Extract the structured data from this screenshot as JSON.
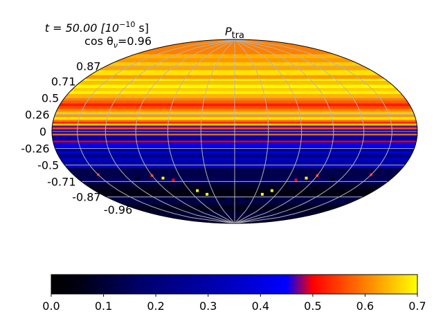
{
  "chart_data": {
    "type": "heatmap",
    "projection": "hammer (all-sky)",
    "title_main": "P",
    "title_sub": "tra",
    "annotation_time": {
      "prefix": "t = 50.00 [10",
      "exp": "−10",
      "suffix": " s]"
    },
    "annotation_angle": {
      "prefix": "cos θ",
      "sub": "ν",
      "suffix": "=0.96"
    },
    "ytick_labels": [
      "0.87",
      "0.71",
      "0.5",
      "0.26",
      "0",
      "-0.26",
      "-0.5",
      "-0.71",
      "-0.87",
      "-0.96"
    ],
    "ytick_values": [
      0.87,
      0.71,
      0.5,
      0.26,
      0,
      -0.26,
      -0.5,
      -0.71,
      -0.87,
      -0.96
    ],
    "colorbar": {
      "range": [
        0.0,
        0.7
      ],
      "tick_values": [
        0.0,
        0.1,
        0.2,
        0.3,
        0.4,
        0.5,
        0.6,
        0.7
      ],
      "tick_labels": [
        "0.0",
        "0.1",
        "0.2",
        "0.3",
        "0.4",
        "0.5",
        "0.6",
        "0.7"
      ],
      "stops": [
        {
          "v": 0.0,
          "color": "#000000"
        },
        {
          "v": 0.05,
          "color": "#000010"
        },
        {
          "v": 0.18,
          "color": "#000070"
        },
        {
          "v": 0.3,
          "color": "#0000a8"
        },
        {
          "v": 0.4,
          "color": "#0000e0"
        },
        {
          "v": 0.45,
          "color": "#0000ff"
        },
        {
          "v": 0.5,
          "color": "#ff0000"
        },
        {
          "v": 0.6,
          "color": "#ff8000"
        },
        {
          "v": 0.7,
          "color": "#ffff00"
        }
      ]
    },
    "bands": [
      {
        "sin_lat_top": 1.0,
        "value": 0.6
      },
      {
        "sin_lat_top": 0.955,
        "value": 0.64
      },
      {
        "sin_lat_top": 0.93,
        "value": 0.62
      },
      {
        "sin_lat_top": 0.9,
        "value": 0.66
      },
      {
        "sin_lat_top": 0.87,
        "value": 0.63
      },
      {
        "sin_lat_top": 0.83,
        "value": 0.68
      },
      {
        "sin_lat_top": 0.78,
        "value": 0.62
      },
      {
        "sin_lat_top": 0.74,
        "value": 0.69
      },
      {
        "sin_lat_top": 0.71,
        "value": 0.65
      },
      {
        "sin_lat_top": 0.67,
        "value": 0.7
      },
      {
        "sin_lat_top": 0.63,
        "value": 0.66
      },
      {
        "sin_lat_top": 0.59,
        "value": 0.69
      },
      {
        "sin_lat_top": 0.55,
        "value": 0.64
      },
      {
        "sin_lat_top": 0.5,
        "value": 0.6
      },
      {
        "sin_lat_top": 0.46,
        "value": 0.57
      },
      {
        "sin_lat_top": 0.42,
        "value": 0.52
      },
      {
        "sin_lat_top": 0.38,
        "value": 0.56
      },
      {
        "sin_lat_top": 0.34,
        "value": 0.61
      },
      {
        "sin_lat_top": 0.3,
        "value": 0.66
      },
      {
        "sin_lat_top": 0.26,
        "value": 0.62
      },
      {
        "sin_lat_top": 0.22,
        "value": 0.68
      },
      {
        "sin_lat_top": 0.18,
        "value": 0.6
      },
      {
        "sin_lat_top": 0.15,
        "value": 0.53
      },
      {
        "sin_lat_top": 0.12,
        "value": 0.66
      },
      {
        "sin_lat_top": 0.09,
        "value": 0.47
      },
      {
        "sin_lat_top": 0.06,
        "value": 0.56
      },
      {
        "sin_lat_top": 0.03,
        "value": 0.31
      },
      {
        "sin_lat_top": 0.0,
        "value": 0.2
      },
      {
        "sin_lat_top": -0.02,
        "value": 0.47
      },
      {
        "sin_lat_top": -0.04,
        "value": 0.6
      },
      {
        "sin_lat_top": -0.06,
        "value": 0.34
      },
      {
        "sin_lat_top": -0.1,
        "value": 0.28
      },
      {
        "sin_lat_top": -0.14,
        "value": 0.49
      },
      {
        "sin_lat_top": -0.17,
        "value": 0.3
      },
      {
        "sin_lat_top": -0.19,
        "value": 0.44
      },
      {
        "sin_lat_top": -0.24,
        "value": 0.25
      },
      {
        "sin_lat_top": -0.3,
        "value": 0.38
      },
      {
        "sin_lat_top": -0.34,
        "value": 0.22
      },
      {
        "sin_lat_top": -0.39,
        "value": 0.34
      },
      {
        "sin_lat_top": -0.44,
        "value": 0.28
      },
      {
        "sin_lat_top": -0.5,
        "value": 0.36
      },
      {
        "sin_lat_top": -0.54,
        "value": 0.13
      },
      {
        "sin_lat_top": -0.66,
        "value": 0.15
      },
      {
        "sin_lat_top": -0.74,
        "value": 0.08
      },
      {
        "sin_lat_top": -0.8,
        "value": 0.05
      },
      {
        "sin_lat_top": -0.86,
        "value": 0.12
      },
      {
        "sin_lat_top": -0.93,
        "value": 0.07
      },
      {
        "sin_lat_top": -0.97,
        "value": 0.1
      }
    ],
    "spots": [
      {
        "lon_deg": -150,
        "sin_lat": -0.52,
        "value": 0.5
      },
      {
        "lon_deg": 150,
        "sin_lat": -0.52,
        "value": 0.5
      },
      {
        "lon_deg": -90,
        "sin_lat": -0.6,
        "value": 0.52
      },
      {
        "lon_deg": 90,
        "sin_lat": -0.6,
        "value": 0.52
      },
      {
        "lon_deg": -70,
        "sin_lat": -0.67,
        "value": 0.5
      },
      {
        "lon_deg": 70,
        "sin_lat": -0.67,
        "value": 0.5
      },
      {
        "lon_deg": -80,
        "sin_lat": -0.64,
        "value": 0.7
      },
      {
        "lon_deg": 80,
        "sin_lat": -0.64,
        "value": 0.7
      },
      {
        "lon_deg": -50,
        "sin_lat": -0.8,
        "value": 0.7
      },
      {
        "lon_deg": 50,
        "sin_lat": -0.8,
        "value": 0.7
      },
      {
        "lon_deg": -40,
        "sin_lat": -0.84,
        "value": 0.7
      },
      {
        "lon_deg": 40,
        "sin_lat": -0.84,
        "value": 0.7
      },
      {
        "lon_deg": -20,
        "sin_lat": -0.88,
        "value": 0.0
      },
      {
        "lon_deg": 0,
        "sin_lat": -0.9,
        "value": 0.0
      },
      {
        "lon_deg": 20,
        "sin_lat": -0.88,
        "value": 0.0
      },
      {
        "lon_deg": -110,
        "sin_lat": -0.62,
        "value": 0.0
      },
      {
        "lon_deg": 110,
        "sin_lat": -0.62,
        "value": 0.0
      },
      {
        "lon_deg": -60,
        "sin_lat": -0.72,
        "value": 0.0
      },
      {
        "lon_deg": 60,
        "sin_lat": -0.72,
        "value": 0.0
      }
    ],
    "graticule": {
      "meridians_deg": [
        -150,
        -120,
        -90,
        -60,
        -30,
        0,
        30,
        60,
        90,
        120,
        150
      ],
      "parallels_sin_lat": [
        0.87,
        0.71,
        0.5,
        0.26,
        0,
        -0.26,
        -0.5,
        -0.71,
        -0.87
      ]
    }
  }
}
